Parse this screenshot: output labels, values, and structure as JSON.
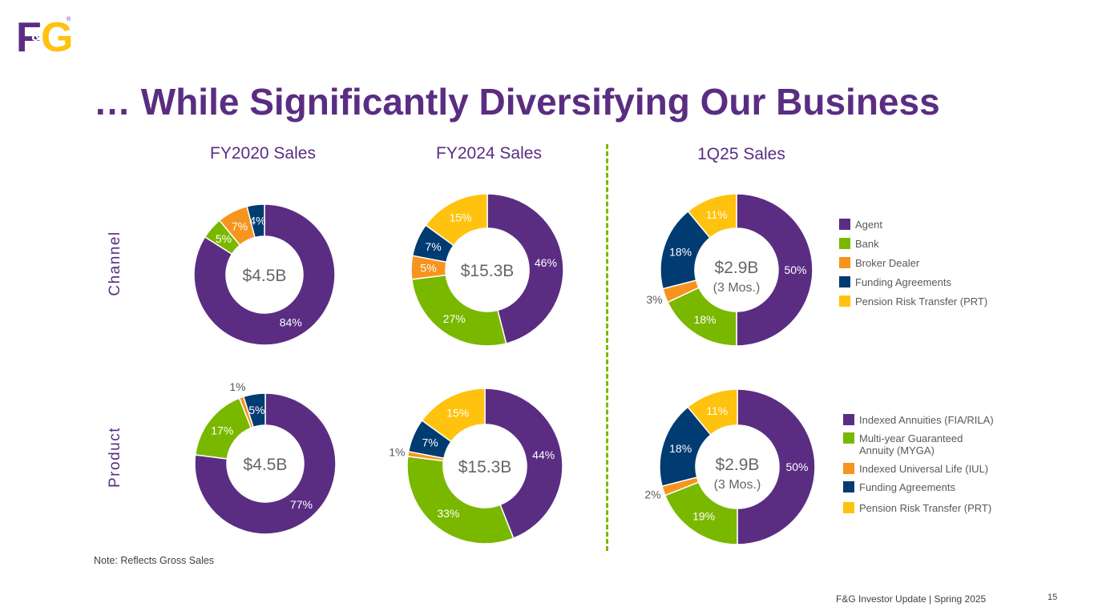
{
  "logo": {
    "text_f": "F",
    "text_amp": "&",
    "text_g": "G",
    "registered": "®"
  },
  "title": "… While Significantly Diversifying Our Business",
  "columns": {
    "fy2020": "FY2020 Sales",
    "fy2024": "FY2024 Sales",
    "q125": "1Q25 Sales"
  },
  "rows": {
    "channel": "Channel",
    "product": "Product"
  },
  "colors": {
    "purple": "#5a2d82",
    "green": "#7ab800",
    "orange": "#f7941d",
    "navy": "#003b71",
    "gold": "#ffc20e",
    "divider": "#7ab800"
  },
  "legend_channel": [
    {
      "label": "Agent",
      "color": "#5a2d82"
    },
    {
      "label": "Bank",
      "color": "#7ab800"
    },
    {
      "label": "Broker Dealer",
      "color": "#f7941d"
    },
    {
      "label": "Funding Agreements",
      "color": "#003b71"
    },
    {
      "label": "Pension Risk Transfer (PRT)",
      "color": "#ffc20e"
    }
  ],
  "legend_product": [
    {
      "label": "Indexed Annuities (FIA/RILA)",
      "color": "#5a2d82"
    },
    {
      "label": "Multi-year Guaranteed Annuity (MYGA)",
      "color": "#7ab800"
    },
    {
      "label": "Indexed Universal Life (IUL)",
      "color": "#f7941d"
    },
    {
      "label": "Funding Agreements",
      "color": "#003b71"
    },
    {
      "label": "Pension Risk Transfer (PRT)",
      "color": "#ffc20e"
    }
  ],
  "chart_data": [
    {
      "type": "pie",
      "id": "channel-fy2020",
      "title": "FY2020 Sales",
      "row": "Channel",
      "center_label": "$4.5B",
      "center_sublabel": "",
      "categories": [
        "Agent",
        "Bank",
        "Broker Dealer",
        "Funding Agreements"
      ],
      "values": [
        84,
        5,
        7,
        4
      ],
      "labels": [
        "84%",
        "5%",
        "7%",
        "4%"
      ]
    },
    {
      "type": "pie",
      "id": "channel-fy2024",
      "title": "FY2024 Sales",
      "row": "Channel",
      "center_label": "$15.3B",
      "center_sublabel": "",
      "categories": [
        "Agent",
        "Bank",
        "Broker Dealer",
        "Funding Agreements",
        "Pension Risk Transfer (PRT)"
      ],
      "values": [
        46,
        27,
        5,
        7,
        15
      ],
      "labels": [
        "46%",
        "27%",
        "5%",
        "7%",
        "15%"
      ]
    },
    {
      "type": "pie",
      "id": "channel-1q25",
      "title": "1Q25 Sales",
      "row": "Channel",
      "center_label": "$2.9B",
      "center_sublabel": "(3 Mos.)",
      "categories": [
        "Agent",
        "Bank",
        "Broker Dealer",
        "Funding Agreements",
        "Pension Risk Transfer (PRT)"
      ],
      "values": [
        50,
        18,
        3,
        18,
        11
      ],
      "labels": [
        "50%",
        "18%",
        "3%",
        "18%",
        "11%"
      ]
    },
    {
      "type": "pie",
      "id": "product-fy2020",
      "title": "FY2020 Sales",
      "row": "Product",
      "center_label": "$4.5B",
      "center_sublabel": "",
      "categories": [
        "Indexed Annuities (FIA/RILA)",
        "Multi-year Guaranteed Annuity (MYGA)",
        "Indexed Universal Life (IUL)",
        "Funding Agreements"
      ],
      "values": [
        77,
        17,
        1,
        5
      ],
      "labels": [
        "77%",
        "17%",
        "1%",
        "5%"
      ]
    },
    {
      "type": "pie",
      "id": "product-fy2024",
      "title": "FY2024 Sales",
      "row": "Product",
      "center_label": "$15.3B",
      "center_sublabel": "",
      "categories": [
        "Indexed Annuities (FIA/RILA)",
        "Multi-year Guaranteed Annuity (MYGA)",
        "Indexed Universal Life (IUL)",
        "Funding Agreements",
        "Pension Risk Transfer (PRT)"
      ],
      "values": [
        44,
        33,
        1,
        7,
        15
      ],
      "labels": [
        "44%",
        "33%",
        "1%",
        "7%",
        "15%"
      ]
    },
    {
      "type": "pie",
      "id": "product-1q25",
      "title": "1Q25 Sales",
      "row": "Product",
      "center_label": "$2.9B",
      "center_sublabel": "(3 Mos.)",
      "categories": [
        "Indexed Annuities (FIA/RILA)",
        "Multi-year Guaranteed Annuity (MYGA)",
        "Indexed Universal Life (IUL)",
        "Funding Agreements",
        "Pension Risk Transfer (PRT)"
      ],
      "values": [
        50,
        19,
        2,
        18,
        11
      ],
      "labels": [
        "50%",
        "19%",
        "2%",
        "18%",
        "11%"
      ]
    }
  ],
  "note": "Note:  Reflects Gross Sales",
  "footer": "F&G Investor Update | Spring 2025",
  "page_number": "15"
}
